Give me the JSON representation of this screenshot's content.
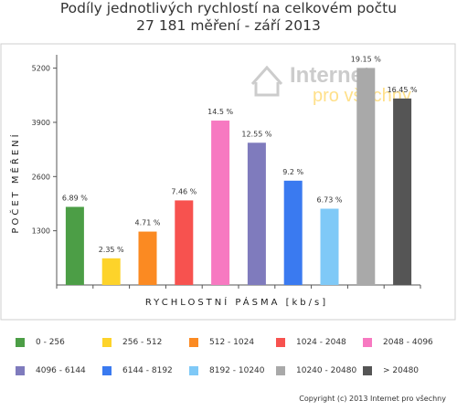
{
  "title_line1": "Podíly jednotlivých rychlostí na celkovém počtu",
  "title_line2": "27 181 měření - září 2013",
  "watermark": {
    "line1": "Internet",
    "line2": "pro všechny"
  },
  "copyright": "Copyright (c) 2013 Internet pro všechny",
  "chart_data": {
    "type": "bar",
    "title": "Podíly jednotlivých rychlostí na celkovém počtu 27 181 měření - září 2013",
    "xlabel": "RYCHLOSTNÍ PÁSMA [kb/s]",
    "ylabel": "POČET MĚŘENÍ",
    "ylim": [
      0,
      5520
    ],
    "yticks": [
      1300,
      2600,
      3900,
      5200
    ],
    "ytick_labels": [
      "1300",
      "2600",
      "3900",
      "5200"
    ],
    "grid": false,
    "legend": "bottom",
    "categories": [
      "0 - 256",
      "256 - 512",
      "512 - 1024",
      "1024 - 2048",
      "2048 - 4096",
      "4096 - 6144",
      "6144 - 8192",
      "8192 - 10240",
      "10240 - 20480",
      "> 20480"
    ],
    "values": [
      1873,
      639,
      1280,
      2028,
      3942,
      3411,
      2501,
      1829,
      5205,
      4472
    ],
    "labels": [
      "6.89 %",
      "2.35 %",
      "4.71 %",
      "7.46 %",
      "14.5 %",
      "12.55 %",
      "9.2 %",
      "6.73 %",
      "19.15 %",
      "16.45 %"
    ],
    "colors": [
      "#4c9e46",
      "#fdd32a",
      "#fb8a22",
      "#f7524f",
      "#f779c1",
      "#7f7bbd",
      "#3a7af0",
      "#7fc9f7",
      "#a9a9a9",
      "#555555"
    ]
  }
}
